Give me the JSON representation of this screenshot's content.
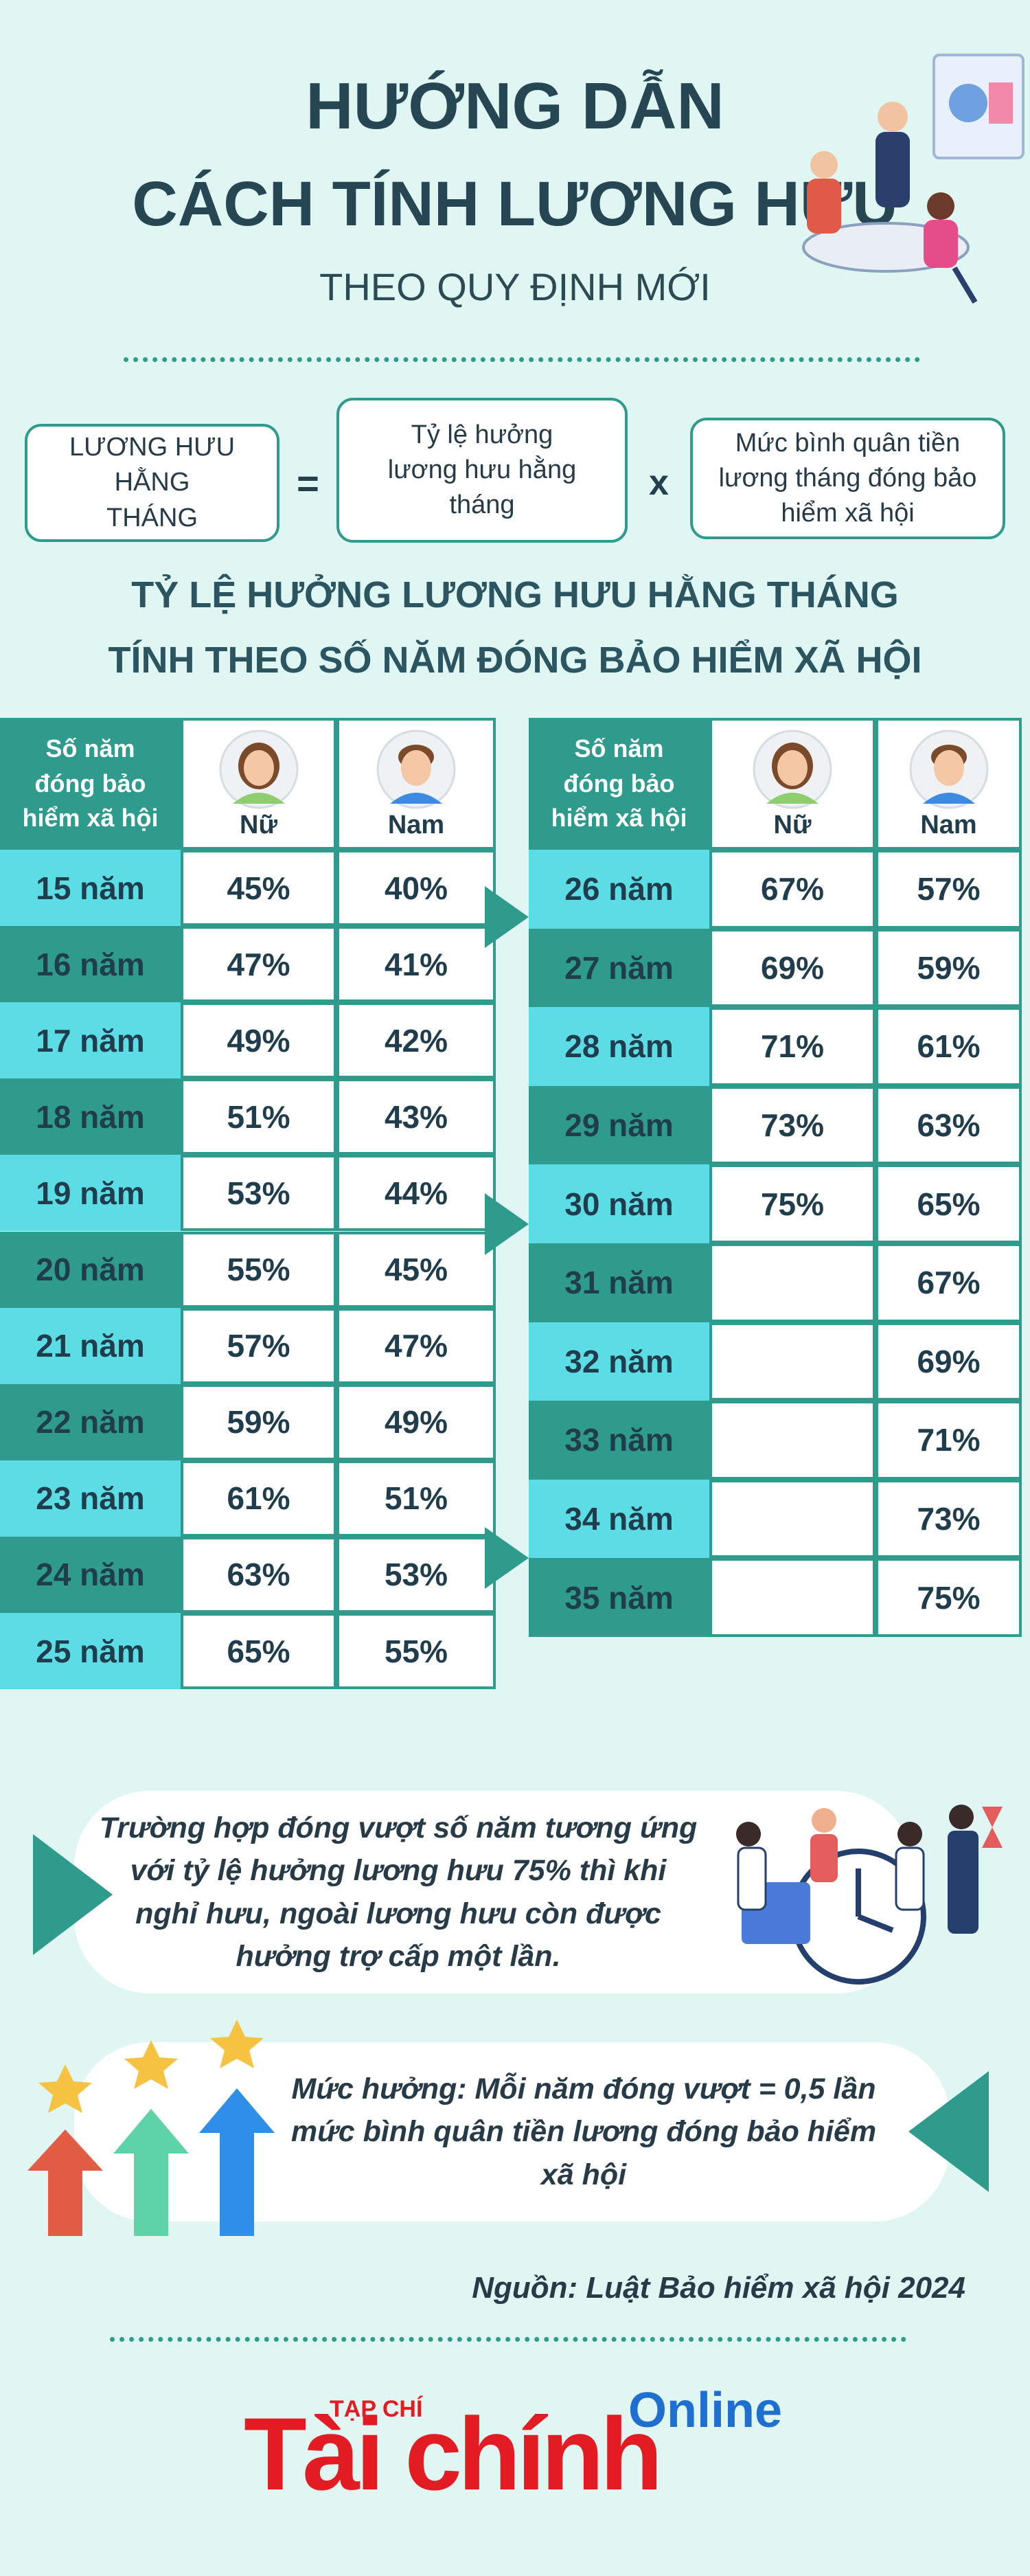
{
  "header": {
    "title": [
      "HƯỚNG DẪN",
      "CÁCH TÍNH LƯƠNG HƯU"
    ],
    "subtitle": "THEO QUY ĐỊNH MỚI"
  },
  "formula": {
    "result": "LƯƠNG HƯU HẰNG THÁNG",
    "equals": "=",
    "rate": "Tỷ lệ hưởng lương hưu hằng tháng",
    "times": "x",
    "salary": "Mức bình quân tiền lương tháng đóng bảo hiểm xã hội"
  },
  "section_title": [
    "TỶ LỆ HƯỞNG LƯƠNG HƯU HẰNG THÁNG",
    "TÍNH THEO SỐ NĂM ĐÓNG BẢO HIỂM XÃ HỘI"
  ],
  "tables": [
    {
      "header": {
        "years": "Số năm đóng bảo hiểm xã hội",
        "female": "Nữ",
        "male": "Nam"
      },
      "rows": [
        {
          "years": "15 năm",
          "female": "45%",
          "male": "40%"
        },
        {
          "years": "16 năm",
          "female": "47%",
          "male": "41%"
        },
        {
          "years": "17 năm",
          "female": "49%",
          "male": "42%"
        },
        {
          "years": "18 năm",
          "female": "51%",
          "male": "43%"
        },
        {
          "years": "19 năm",
          "female": "53%",
          "male": "44%"
        },
        {
          "years": "20 năm",
          "female": "55%",
          "male": "45%"
        },
        {
          "years": "21 năm",
          "female": "57%",
          "male": "47%"
        },
        {
          "years": "22 năm",
          "female": "59%",
          "male": "49%"
        },
        {
          "years": "23 năm",
          "female": "61%",
          "male": "51%"
        },
        {
          "years": "24 năm",
          "female": "63%",
          "male": "53%"
        },
        {
          "years": "25 năm",
          "female": "65%",
          "male": "55%"
        }
      ]
    },
    {
      "header": {
        "years": "Số năm đóng bảo hiểm xã hội",
        "female": "Nữ",
        "male": "Nam"
      },
      "rows": [
        {
          "years": "26 năm",
          "female": "67%",
          "male": "57%"
        },
        {
          "years": "27 năm",
          "female": "69%",
          "male": "59%"
        },
        {
          "years": "28 năm",
          "female": "71%",
          "male": "61%"
        },
        {
          "years": "29 năm",
          "female": "73%",
          "male": "63%"
        },
        {
          "years": "30 năm",
          "female": "75%",
          "male": "65%"
        },
        {
          "years": "31 năm",
          "male": "67%"
        },
        {
          "years": "32 năm",
          "male": "69%"
        },
        {
          "years": "33 năm",
          "male": "71%"
        },
        {
          "years": "34 năm",
          "male": "73%"
        },
        {
          "years": "35 năm",
          "male": "75%"
        }
      ]
    }
  ],
  "notes": [
    "Trường hợp đóng vượt số năm tương ứng với tỷ lệ hưởng lương hưu 75% thì khi nghỉ hưu, ngoài lương hưu còn được hưởng trợ cấp một lần.",
    "Mức hưởng: Mỗi năm đóng vượt = 0,5 lần mức bình quân tiền lương đóng bảo hiểm xã hội"
  ],
  "source": "Nguồn: Luật Bảo hiểm xã hội 2024",
  "logo": {
    "prefix": "TẠP CHÍ",
    "name": "Tài chính",
    "suffix": "Online"
  }
}
